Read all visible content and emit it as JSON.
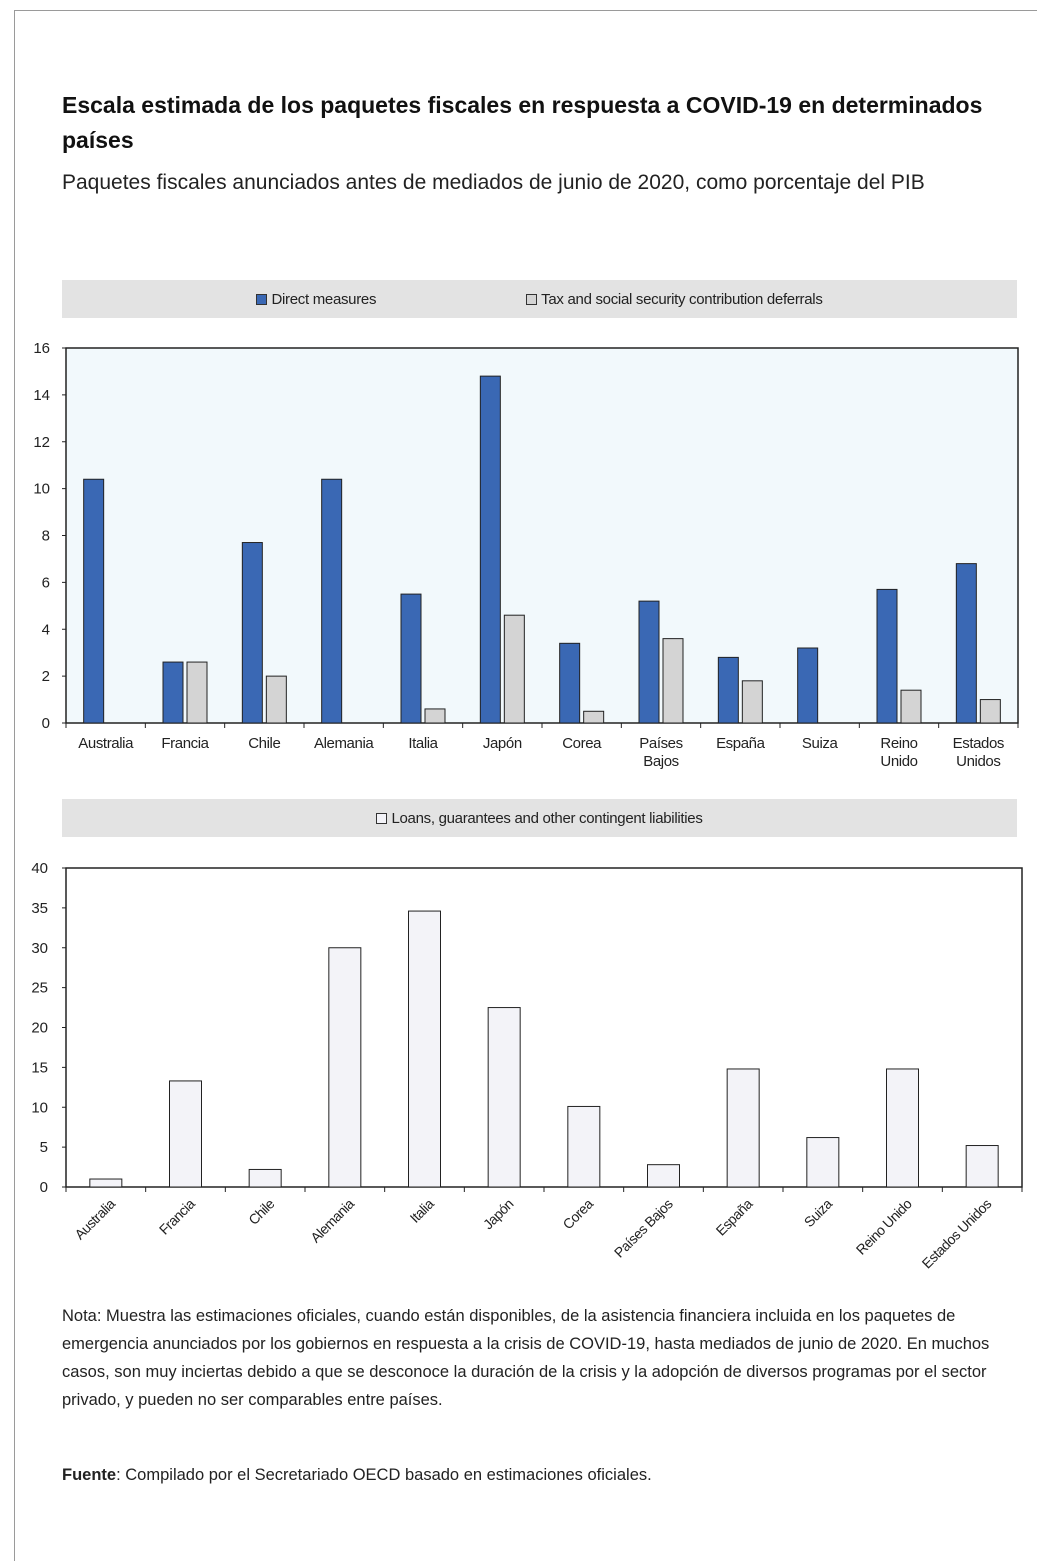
{
  "title": "Escala estimada de los paquetes fiscales en respuesta a COVID-19 en determinados países",
  "subtitle": "Paquetes fiscales anunciados antes de mediados de junio de 2020, como porcentaje del PIB",
  "note": "Nota: Muestra las estimaciones oficiales, cuando están disponibles, de la asistencia financiera incluida en los paquetes de emergencia anunciados por los gobiernos en respuesta a la crisis de COVID-19, hasta mediados de junio de 2020. En muchos casos, son muy inciertas debido a que se desconoce la duración de la crisis y la adopción de diversos programas por el sector privado, y pueden no ser comparables entre países.",
  "source_label": "Fuente",
  "source_text": ": Compilado por el Secretariado OECD basado en estimaciones oficiales.",
  "colors": {
    "direct": "#3a68b4",
    "tax": "#d4d4d4",
    "loans": "#f3f3f8",
    "plot_bg": "#f2f9fc"
  },
  "chart_data": [
    {
      "type": "bar",
      "categories": [
        "Australia",
        "Francia",
        "Chile",
        "Alemania",
        "Italia",
        "Japón",
        "Corea",
        "Países Bajos",
        "España",
        "Suiza",
        "Reino Unido",
        "Estados Unidos"
      ],
      "series": [
        {
          "name": "Direct measures",
          "values": [
            10.4,
            2.6,
            7.7,
            10.4,
            5.5,
            14.8,
            3.4,
            5.2,
            2.8,
            3.2,
            5.7,
            6.8
          ]
        },
        {
          "name": "Tax and social security contribution deferrals",
          "values": [
            0,
            2.6,
            2.0,
            0,
            0.6,
            4.6,
            0.5,
            3.6,
            1.8,
            0,
            1.4,
            1.0
          ]
        }
      ],
      "ylim": [
        0,
        16
      ],
      "yticks": [
        0,
        2,
        4,
        6,
        8,
        10,
        12,
        14,
        16
      ],
      "legend_position": "top",
      "grid": false
    },
    {
      "type": "bar",
      "categories": [
        "Australia",
        "Francia",
        "Chile",
        "Alemania",
        "Italia",
        "Japón",
        "Corea",
        "Países Bajos",
        "España",
        "Suiza",
        "Reino Unido",
        "Estados Unidos"
      ],
      "series": [
        {
          "name": "Loans, guarantees and other contingent liabilities",
          "values": [
            1.0,
            13.3,
            2.2,
            30.0,
            34.6,
            22.5,
            10.1,
            2.8,
            14.8,
            6.2,
            14.8,
            5.2
          ]
        }
      ],
      "ylim": [
        0,
        40
      ],
      "yticks": [
        0,
        5,
        10,
        15,
        20,
        25,
        30,
        35,
        40
      ],
      "legend_position": "top",
      "grid": false
    }
  ]
}
